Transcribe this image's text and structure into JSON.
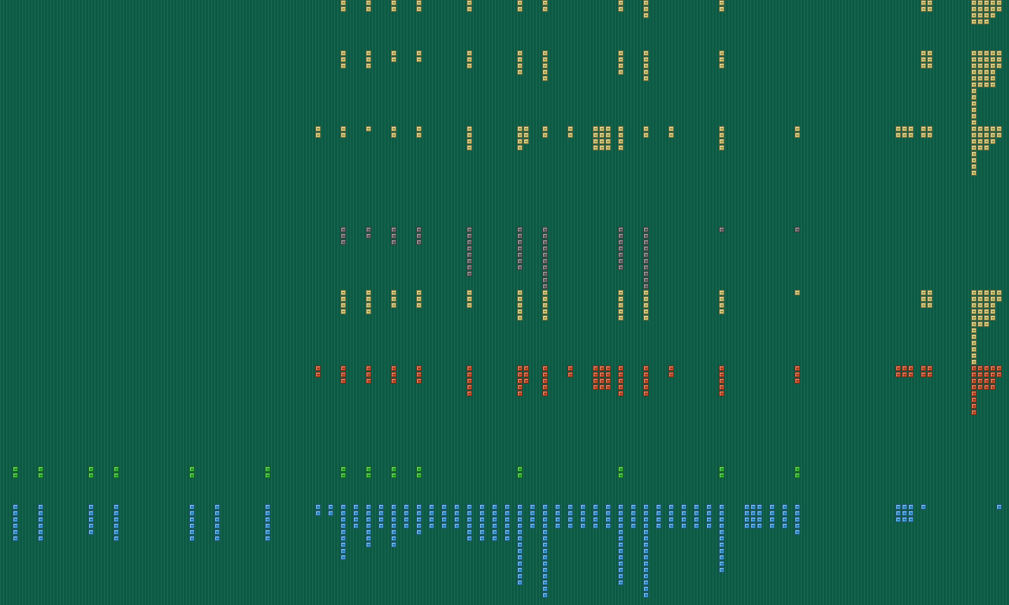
{
  "palette": {
    "yellow": "#c9bf6a",
    "gray": "#6e6e6e",
    "orange": "#c8502a",
    "green": "#2fb82f",
    "blue": "#3a9ad8"
  },
  "rows": [
    {
      "id": "row-1-yellow",
      "color": "yellow",
      "columns": [
        {
          "col": 54,
          "stack": 2
        },
        {
          "col": 58,
          "stack": 2
        },
        {
          "col": 62,
          "stack": 2
        },
        {
          "col": 66,
          "stack": 2
        },
        {
          "col": 74,
          "stack": 2
        },
        {
          "col": 82,
          "stack": 2
        },
        {
          "col": 86,
          "stack": 2
        },
        {
          "col": 98,
          "stack": 2
        },
        {
          "col": 102,
          "stack": 3
        },
        {
          "col": 114,
          "stack": 2
        },
        {
          "col": 146,
          "stack": 2
        },
        {
          "col": 147,
          "stack": 2
        },
        {
          "col": 154,
          "stack": 4
        },
        {
          "col": 155,
          "stack": 4
        },
        {
          "col": 156,
          "stack": 4
        },
        {
          "col": 157,
          "stack": 3
        },
        {
          "col": 158,
          "stack": 2
        }
      ]
    },
    {
      "id": "row-2-yellow",
      "color": "yellow",
      "columns": [
        {
          "col": 54,
          "stack": 3
        },
        {
          "col": 58,
          "stack": 3
        },
        {
          "col": 62,
          "stack": 2
        },
        {
          "col": 66,
          "stack": 2
        },
        {
          "col": 74,
          "stack": 3
        },
        {
          "col": 82,
          "stack": 4
        },
        {
          "col": 86,
          "stack": 5
        },
        {
          "col": 98,
          "stack": 4
        },
        {
          "col": 102,
          "stack": 5
        },
        {
          "col": 114,
          "stack": 3
        },
        {
          "col": 146,
          "stack": 3
        },
        {
          "col": 147,
          "stack": 3
        },
        {
          "col": 154,
          "stack": 12
        },
        {
          "col": 155,
          "stack": 6
        },
        {
          "col": 156,
          "stack": 6
        },
        {
          "col": 157,
          "stack": 6
        },
        {
          "col": 158,
          "stack": 3
        }
      ]
    },
    {
      "id": "row-3-yellow",
      "color": "yellow",
      "columns": [
        {
          "col": 50,
          "stack": 2
        },
        {
          "col": 54,
          "stack": 2
        },
        {
          "col": 58,
          "stack": 1
        },
        {
          "col": 62,
          "stack": 2
        },
        {
          "col": 66,
          "stack": 2
        },
        {
          "col": 74,
          "stack": 4
        },
        {
          "col": 82,
          "stack": 4
        },
        {
          "col": 83,
          "stack": 3
        },
        {
          "col": 86,
          "stack": 2
        },
        {
          "col": 90,
          "stack": 2
        },
        {
          "col": 94,
          "stack": 4
        },
        {
          "col": 95,
          "stack": 4
        },
        {
          "col": 96,
          "stack": 4
        },
        {
          "col": 98,
          "stack": 4
        },
        {
          "col": 102,
          "stack": 2
        },
        {
          "col": 106,
          "stack": 2
        },
        {
          "col": 114,
          "stack": 4
        },
        {
          "col": 126,
          "stack": 2
        },
        {
          "col": 142,
          "stack": 2
        },
        {
          "col": 143,
          "stack": 2
        },
        {
          "col": 144,
          "stack": 2
        },
        {
          "col": 146,
          "stack": 2
        },
        {
          "col": 147,
          "stack": 2
        },
        {
          "col": 154,
          "stack": 8
        },
        {
          "col": 155,
          "stack": 4
        },
        {
          "col": 156,
          "stack": 4
        },
        {
          "col": 157,
          "stack": 3
        },
        {
          "col": 158,
          "stack": 2
        }
      ]
    },
    {
      "id": "row-4-gray",
      "color": "gray",
      "columns": [
        {
          "col": 54,
          "stack": 3
        },
        {
          "col": 58,
          "stack": 2
        },
        {
          "col": 62,
          "stack": 3
        },
        {
          "col": 66,
          "stack": 3
        },
        {
          "col": 74,
          "stack": 8
        },
        {
          "col": 82,
          "stack": 7
        },
        {
          "col": 86,
          "stack": 10
        },
        {
          "col": 98,
          "stack": 7
        },
        {
          "col": 102,
          "stack": 10
        },
        {
          "col": 114,
          "stack": 1
        },
        {
          "col": 126,
          "stack": 1
        }
      ]
    },
    {
      "id": "row-5-yellow",
      "color": "yellow",
      "columns": [
        {
          "col": 54,
          "stack": 4
        },
        {
          "col": 58,
          "stack": 4
        },
        {
          "col": 62,
          "stack": 3
        },
        {
          "col": 66,
          "stack": 3
        },
        {
          "col": 74,
          "stack": 3
        },
        {
          "col": 82,
          "stack": 5
        },
        {
          "col": 86,
          "stack": 5
        },
        {
          "col": 98,
          "stack": 5
        },
        {
          "col": 102,
          "stack": 5
        },
        {
          "col": 114,
          "stack": 4
        },
        {
          "col": 126,
          "stack": 1
        },
        {
          "col": 146,
          "stack": 3
        },
        {
          "col": 147,
          "stack": 3
        },
        {
          "col": 154,
          "stack": 12
        },
        {
          "col": 155,
          "stack": 6
        },
        {
          "col": 156,
          "stack": 6
        },
        {
          "col": 157,
          "stack": 5
        },
        {
          "col": 158,
          "stack": 2
        }
      ]
    },
    {
      "id": "row-6-orange",
      "color": "orange",
      "columns": [
        {
          "col": 50,
          "stack": 2
        },
        {
          "col": 54,
          "stack": 3
        },
        {
          "col": 58,
          "stack": 3
        },
        {
          "col": 62,
          "stack": 3
        },
        {
          "col": 66,
          "stack": 3
        },
        {
          "col": 74,
          "stack": 5
        },
        {
          "col": 82,
          "stack": 5
        },
        {
          "col": 83,
          "stack": 3
        },
        {
          "col": 86,
          "stack": 5
        },
        {
          "col": 90,
          "stack": 2
        },
        {
          "col": 94,
          "stack": 4
        },
        {
          "col": 95,
          "stack": 4
        },
        {
          "col": 96,
          "stack": 4
        },
        {
          "col": 98,
          "stack": 5
        },
        {
          "col": 102,
          "stack": 5
        },
        {
          "col": 106,
          "stack": 2
        },
        {
          "col": 114,
          "stack": 5
        },
        {
          "col": 126,
          "stack": 3
        },
        {
          "col": 142,
          "stack": 2
        },
        {
          "col": 143,
          "stack": 2
        },
        {
          "col": 144,
          "stack": 2
        },
        {
          "col": 146,
          "stack": 2
        },
        {
          "col": 147,
          "stack": 2
        },
        {
          "col": 154,
          "stack": 8
        },
        {
          "col": 155,
          "stack": 4
        },
        {
          "col": 156,
          "stack": 4
        },
        {
          "col": 157,
          "stack": 4
        },
        {
          "col": 158,
          "stack": 2
        }
      ]
    },
    {
      "id": "row-7-green",
      "color": "green",
      "columns": [
        {
          "col": 2,
          "stack": 2
        },
        {
          "col": 6,
          "stack": 2
        },
        {
          "col": 14,
          "stack": 2
        },
        {
          "col": 18,
          "stack": 2
        },
        {
          "col": 30,
          "stack": 2
        },
        {
          "col": 42,
          "stack": 2
        },
        {
          "col": 54,
          "stack": 2
        },
        {
          "col": 58,
          "stack": 2
        },
        {
          "col": 62,
          "stack": 2
        },
        {
          "col": 66,
          "stack": 2
        },
        {
          "col": 82,
          "stack": 2
        },
        {
          "col": 98,
          "stack": 2
        },
        {
          "col": 114,
          "stack": 2
        },
        {
          "col": 126,
          "stack": 2
        }
      ]
    },
    {
      "id": "row-8-blue",
      "color": "blue",
      "columns": [
        {
          "col": 2,
          "stack": 6
        },
        {
          "col": 6,
          "stack": 6
        },
        {
          "col": 14,
          "stack": 5
        },
        {
          "col": 18,
          "stack": 6
        },
        {
          "col": 30,
          "stack": 6
        },
        {
          "col": 34,
          "stack": 6
        },
        {
          "col": 42,
          "stack": 6
        },
        {
          "col": 50,
          "stack": 2
        },
        {
          "col": 52,
          "stack": 2
        },
        {
          "col": 54,
          "stack": 9
        },
        {
          "col": 56,
          "stack": 4
        },
        {
          "col": 58,
          "stack": 7
        },
        {
          "col": 60,
          "stack": 4
        },
        {
          "col": 62,
          "stack": 7
        },
        {
          "col": 64,
          "stack": 4
        },
        {
          "col": 66,
          "stack": 5
        },
        {
          "col": 68,
          "stack": 4
        },
        {
          "col": 70,
          "stack": 4
        },
        {
          "col": 72,
          "stack": 4
        },
        {
          "col": 74,
          "stack": 6
        },
        {
          "col": 76,
          "stack": 6
        },
        {
          "col": 78,
          "stack": 6
        },
        {
          "col": 80,
          "stack": 6
        },
        {
          "col": 82,
          "stack": 13
        },
        {
          "col": 84,
          "stack": 4
        },
        {
          "col": 86,
          "stack": 15
        },
        {
          "col": 88,
          "stack": 4
        },
        {
          "col": 90,
          "stack": 4
        },
        {
          "col": 92,
          "stack": 4
        },
        {
          "col": 94,
          "stack": 4
        },
        {
          "col": 96,
          "stack": 4
        },
        {
          "col": 98,
          "stack": 13
        },
        {
          "col": 100,
          "stack": 4
        },
        {
          "col": 102,
          "stack": 15
        },
        {
          "col": 104,
          "stack": 4
        },
        {
          "col": 106,
          "stack": 4
        },
        {
          "col": 108,
          "stack": 4
        },
        {
          "col": 110,
          "stack": 4
        },
        {
          "col": 112,
          "stack": 4
        },
        {
          "col": 114,
          "stack": 11
        },
        {
          "col": 118,
          "stack": 4
        },
        {
          "col": 119,
          "stack": 4
        },
        {
          "col": 120,
          "stack": 4
        },
        {
          "col": 122,
          "stack": 4
        },
        {
          "col": 124,
          "stack": 4
        },
        {
          "col": 126,
          "stack": 5
        },
        {
          "col": 142,
          "stack": 3
        },
        {
          "col": 143,
          "stack": 3
        },
        {
          "col": 144,
          "stack": 3
        },
        {
          "col": 146,
          "stack": 1
        },
        {
          "col": 158,
          "stack": 1
        }
      ]
    }
  ]
}
